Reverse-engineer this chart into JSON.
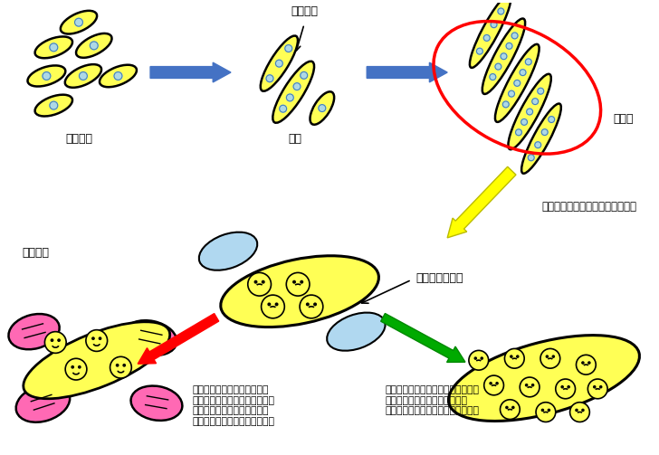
{
  "bg_color": "#ffffff",
  "yellow": "#FFFF55",
  "blue_nuc": "#ADD8E6",
  "pink": "#FF69B4",
  "arrow_blue": "#4472C4",
  "red": "#FF0000",
  "green": "#00AA00",
  "label_myoblast": "筋芽細胞",
  "label_myotube": "筋管",
  "label_cell_fusion": "細胞融合",
  "label_muscle_fiber": "筋線維",
  "label_detail": "筋線維を詳細に見ると・・・・・",
  "label_satellite": "サテライト細胞",
  "label_fat_cell": "脂肪細胞",
  "label_inactive": "動いていない筋肉は核の数も\n減少して筋力が落ちる。周囲の\nサテライト細胞は脂肪細胞に\n変化して霜降りの状態となる。",
  "label_active": "運動する（よく動く）とサテライト\n細胞が筋肉細胞に変化し、筋肉\nは太く、強くなる。（筋トレ効果）"
}
